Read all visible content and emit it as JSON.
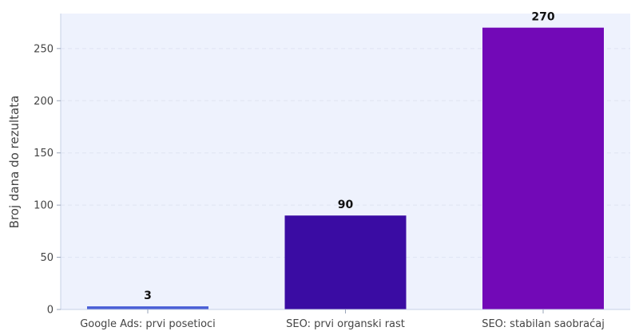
{
  "chart_data": {
    "type": "bar",
    "title": "",
    "xlabel": "",
    "ylabel": "Broj dana do rezultata",
    "categories": [
      "Google Ads: prvi posetioci",
      "SEO: prvi organski rast",
      "SEO: stabilan saobraćaj"
    ],
    "values": [
      3,
      90,
      270
    ],
    "value_labels": [
      "3",
      "90",
      "270"
    ],
    "bar_colors": [
      "#4a5fd6",
      "#3a0ca3",
      "#7209b7"
    ],
    "ylim": [
      0,
      283.5
    ],
    "yticks": [
      0,
      50,
      100,
      150,
      200,
      250
    ],
    "ytick_labels": [
      "0",
      "50",
      "100",
      "150",
      "200",
      "250"
    ],
    "grid": "horizontal dashed",
    "plot_background": "#eef2fd"
  }
}
